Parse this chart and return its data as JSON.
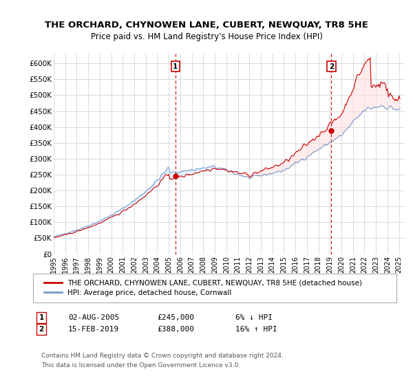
{
  "title": "THE ORCHARD, CHYNOWEN LANE, CUBERT, NEWQUAY, TR8 5HE",
  "subtitle": "Price paid vs. HM Land Registry's House Price Index (HPI)",
  "ylabel_ticks": [
    "£0",
    "£50K",
    "£100K",
    "£150K",
    "£200K",
    "£250K",
    "£300K",
    "£350K",
    "£400K",
    "£450K",
    "£500K",
    "£550K",
    "£600K"
  ],
  "ytick_values": [
    0,
    50000,
    100000,
    150000,
    200000,
    250000,
    300000,
    350000,
    400000,
    450000,
    500000,
    550000,
    600000
  ],
  "ylim": [
    0,
    630000
  ],
  "xlim_start": 1995.0,
  "xlim_end": 2025.5,
  "sale1_x": 2005.58,
  "sale1_y": 245000,
  "sale1_label": "1",
  "sale1_date": "02-AUG-2005",
  "sale1_price": "£245,000",
  "sale1_hpi": "6% ↓ HPI",
  "sale2_x": 2019.12,
  "sale2_y": 388000,
  "sale2_label": "2",
  "sale2_date": "15-FEB-2019",
  "sale2_price": "£388,000",
  "sale2_hpi": "16% ↑ HPI",
  "line1_color": "#cc0000",
  "line2_color": "#7799cc",
  "fill_color": "#ddeeff",
  "marker_color": "#cc0000",
  "vline_color": "#cc0000",
  "legend1_label": "THE ORCHARD, CHYNOWEN LANE, CUBERT, NEWQUAY, TR8 5HE (detached house)",
  "legend2_label": "HPI: Average price, detached house, Cornwall",
  "footer1": "Contains HM Land Registry data © Crown copyright and database right 2024.",
  "footer2": "This data is licensed under the Open Government Licence v3.0.",
  "xtick_years": [
    1995,
    1996,
    1997,
    1998,
    1999,
    2000,
    2001,
    2002,
    2003,
    2004,
    2005,
    2006,
    2007,
    2008,
    2009,
    2010,
    2011,
    2012,
    2013,
    2014,
    2015,
    2016,
    2017,
    2018,
    2019,
    2020,
    2021,
    2022,
    2023,
    2024,
    2025
  ]
}
